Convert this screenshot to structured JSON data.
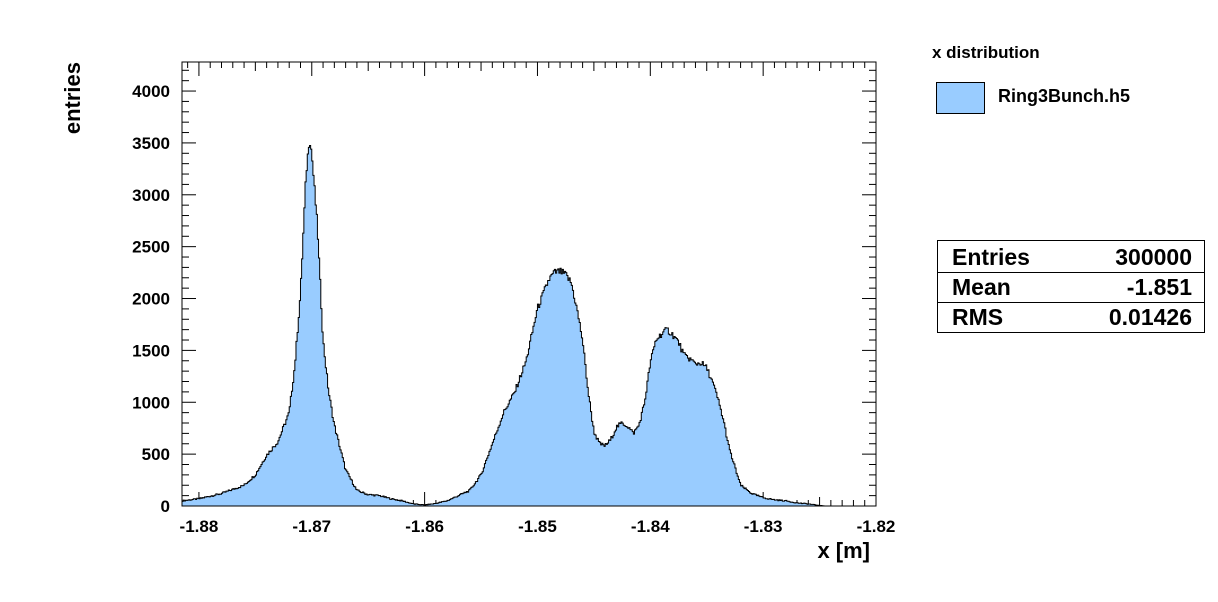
{
  "colors": {
    "fill": "#99ccff",
    "line": "#000000",
    "background": "#ffffff"
  },
  "legend": {
    "title": "x distribution",
    "entries": [
      {
        "label": "Ring3Bunch.h5",
        "color": "#99ccff"
      }
    ]
  },
  "stats": {
    "rows": [
      {
        "name": "Entries",
        "value": "300000"
      },
      {
        "name": "Mean",
        "value": "-1.851"
      },
      {
        "name": "RMS",
        "value": "0.01426"
      }
    ]
  },
  "chart_data": {
    "type": "area",
    "title": "",
    "xlabel": "x [m]",
    "ylabel": "entries",
    "xlim": [
      -1.8815,
      -1.82
    ],
    "ylim": [
      0,
      4280
    ],
    "x_ticks": [
      {
        "v": -1.88,
        "label": "-1.88"
      },
      {
        "v": -1.87,
        "label": "-1.87"
      },
      {
        "v": -1.86,
        "label": "-1.86"
      },
      {
        "v": -1.85,
        "label": "-1.85"
      },
      {
        "v": -1.84,
        "label": "-1.84"
      },
      {
        "v": -1.83,
        "label": "-1.83"
      },
      {
        "v": -1.82,
        "label": "-1.82"
      }
    ],
    "y_ticks": [
      {
        "v": 0,
        "label": "0"
      },
      {
        "v": 500,
        "label": "500"
      },
      {
        "v": 1000,
        "label": "1000"
      },
      {
        "v": 1500,
        "label": "1500"
      },
      {
        "v": 2000,
        "label": "2000"
      },
      {
        "v": 2500,
        "label": "2500"
      },
      {
        "v": 3000,
        "label": "3000"
      },
      {
        "v": 3500,
        "label": "3500"
      },
      {
        "v": 4000,
        "label": "4000"
      }
    ],
    "series": [
      {
        "name": "Ring3Bunch.h5",
        "x": [
          -1.8815,
          -1.88,
          -1.878,
          -1.876,
          -1.875,
          -1.874,
          -1.873,
          -1.872,
          -1.8715,
          -1.871,
          -1.8705,
          -1.8702,
          -1.87,
          -1.8695,
          -1.869,
          -1.8685,
          -1.868,
          -1.867,
          -1.866,
          -1.865,
          -1.864,
          -1.863,
          -1.862,
          -1.861,
          -1.86,
          -1.859,
          -1.858,
          -1.857,
          -1.856,
          -1.855,
          -1.854,
          -1.853,
          -1.852,
          -1.851,
          -1.85,
          -1.849,
          -1.8485,
          -1.848,
          -1.8475,
          -1.847,
          -1.8465,
          -1.846,
          -1.8455,
          -1.845,
          -1.8445,
          -1.844,
          -1.8435,
          -1.843,
          -1.8425,
          -1.842,
          -1.8415,
          -1.841,
          -1.8405,
          -1.84,
          -1.8395,
          -1.839,
          -1.8385,
          -1.838,
          -1.8375,
          -1.837,
          -1.8365,
          -1.836,
          -1.8355,
          -1.835,
          -1.8345,
          -1.834,
          -1.8335,
          -1.833,
          -1.832,
          -1.831,
          -1.83,
          -1.829,
          -1.828,
          -1.827,
          -1.826,
          -1.825,
          -1.8245
        ],
        "values": [
          50,
          70,
          120,
          200,
          300,
          490,
          620,
          900,
          1350,
          2050,
          3200,
          3560,
          3400,
          2700,
          1600,
          1100,
          780,
          350,
          150,
          110,
          100,
          70,
          50,
          20,
          10,
          25,
          50,
          100,
          150,
          300,
          600,
          900,
          1100,
          1400,
          1900,
          2180,
          2250,
          2260,
          2230,
          2150,
          1900,
          1600,
          1100,
          720,
          600,
          580,
          640,
          760,
          800,
          770,
          700,
          780,
          1000,
          1380,
          1600,
          1660,
          1700,
          1650,
          1580,
          1450,
          1420,
          1370,
          1380,
          1330,
          1200,
          1030,
          820,
          550,
          200,
          120,
          80,
          60,
          50,
          30,
          20,
          5,
          0
        ]
      }
    ]
  }
}
